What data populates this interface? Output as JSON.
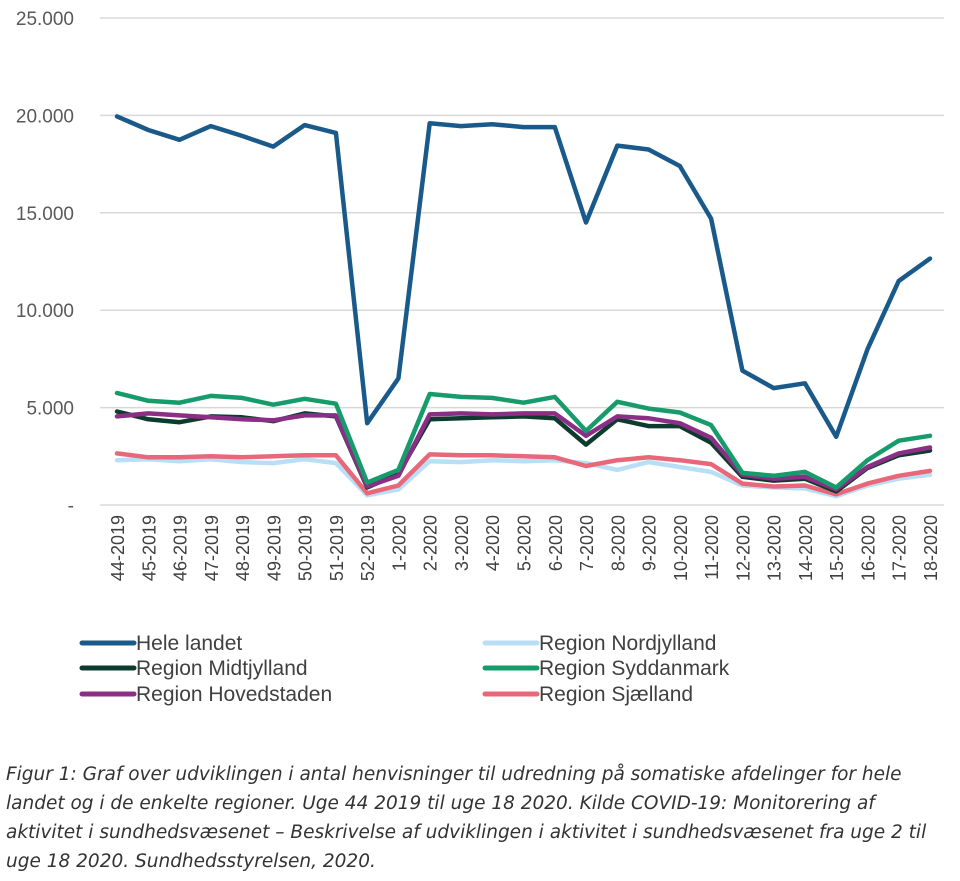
{
  "chart_data": {
    "type": "line",
    "ylim": [
      0,
      25000
    ],
    "yticks": [
      {
        "value": 0,
        "label": "-"
      },
      {
        "value": 5000,
        "label": "5.000"
      },
      {
        "value": 10000,
        "label": "10.000"
      },
      {
        "value": 15000,
        "label": "15.000"
      },
      {
        "value": 20000,
        "label": "20.000"
      },
      {
        "value": 25000,
        "label": "25.000"
      }
    ],
    "grid": "horizontal",
    "legend_position": "bottom",
    "categories": [
      "44-2019",
      "45-2019",
      "46-2019",
      "47-2019",
      "48-2019",
      "49-2019",
      "50-2019",
      "51-2019",
      "52-2019",
      "1-2020",
      "2-2020",
      "3-2020",
      "4-2020",
      "5-2020",
      "6-2020",
      "7-2020",
      "8-2020",
      "9-2020",
      "10-2020",
      "11-2020",
      "12-2020",
      "13-2020",
      "14-2020",
      "15-2020",
      "16-2020",
      "17-2020",
      "18-2020"
    ],
    "series": [
      {
        "name": "Hele landet",
        "color": "#1a5a8a",
        "values": [
          19950,
          19250,
          18750,
          19450,
          18950,
          18400,
          19500,
          19100,
          4200,
          6500,
          19600,
          19450,
          19550,
          19400,
          19400,
          14500,
          18450,
          18250,
          17400,
          14700,
          6900,
          6000,
          6250,
          3500,
          8000,
          11500,
          12650
        ]
      },
      {
        "name": "Region Nordjylland",
        "color": "#b8dff5",
        "values": [
          2300,
          2350,
          2250,
          2350,
          2200,
          2150,
          2350,
          2150,
          500,
          800,
          2250,
          2200,
          2300,
          2250,
          2300,
          2150,
          1800,
          2200,
          1950,
          1700,
          1000,
          900,
          850,
          450,
          1000,
          1350,
          1550
        ]
      },
      {
        "name": "Region Midtjylland",
        "color": "#0d3b2e",
        "values": [
          4800,
          4400,
          4250,
          4550,
          4500,
          4300,
          4700,
          4550,
          900,
          1600,
          4400,
          4450,
          4500,
          4550,
          4450,
          3100,
          4400,
          4050,
          4050,
          3200,
          1450,
          1250,
          1350,
          700,
          1900,
          2550,
          2800
        ]
      },
      {
        "name": "Region Syddanmark",
        "color": "#169b6a",
        "values": [
          5750,
          5350,
          5250,
          5600,
          5500,
          5150,
          5450,
          5200,
          1150,
          1800,
          5700,
          5550,
          5500,
          5250,
          5550,
          3800,
          5300,
          4950,
          4750,
          4100,
          1650,
          1500,
          1700,
          900,
          2300,
          3300,
          3550
        ]
      },
      {
        "name": "Region Hovedstaden",
        "color": "#8b2e86",
        "values": [
          4550,
          4700,
          4600,
          4500,
          4400,
          4350,
          4600,
          4600,
          950,
          1500,
          4650,
          4700,
          4650,
          4700,
          4700,
          3550,
          4550,
          4450,
          4200,
          3450,
          1550,
          1350,
          1450,
          800,
          1950,
          2650,
          2950
        ]
      },
      {
        "name": "Region Sjælland",
        "color": "#e8687a",
        "values": [
          2650,
          2450,
          2450,
          2500,
          2450,
          2500,
          2550,
          2550,
          600,
          1000,
          2600,
          2550,
          2550,
          2500,
          2450,
          2000,
          2300,
          2450,
          2300,
          2100,
          1100,
          950,
          1000,
          550,
          1100,
          1500,
          1750
        ]
      }
    ]
  },
  "caption": "Figur 1: Graf over udviklingen i antal henvisninger til udredning på somatiske afdelinger for hele landet og i de enkelte regioner. Uge 44 2019 til uge 18 2020. Kilde COVID-19: Monitorering af aktivitet i sundhedsvæsenet – Beskrivelse af udviklingen i aktivitet i sundhedsvæsenet fra uge 2 til uge 18 2020. Sundhedsstyrelsen, 2020."
}
